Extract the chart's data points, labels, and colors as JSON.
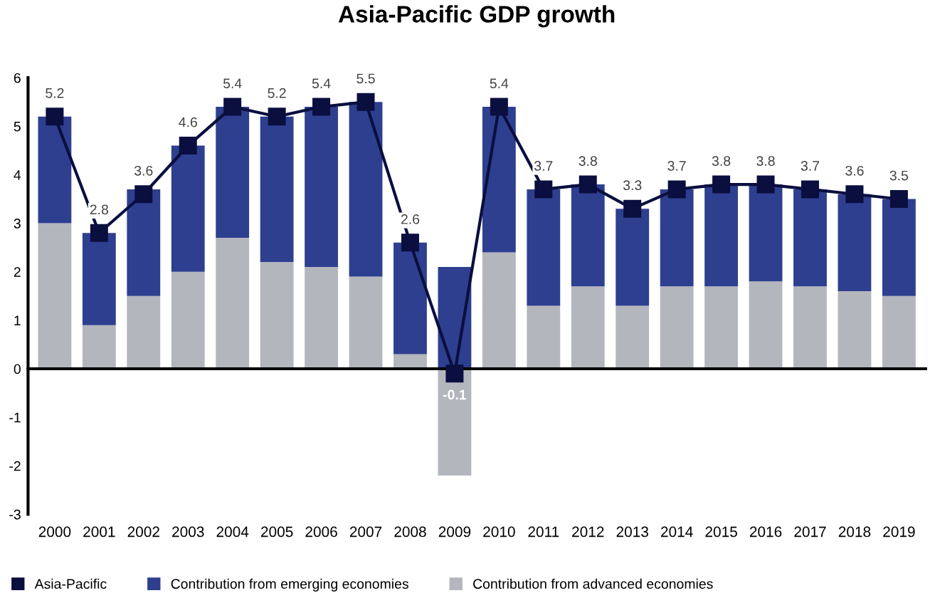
{
  "chart_data": {
    "type": "bar",
    "title": "Asia-Pacific GDP growth",
    "stacked": true,
    "categories": [
      "2000",
      "2001",
      "2002",
      "2003",
      "2004",
      "2005",
      "2006",
      "2007",
      "2008",
      "2009",
      "2010",
      "2011",
      "2012",
      "2013",
      "2014",
      "2015",
      "2016",
      "2017",
      "2018",
      "2019"
    ],
    "series": [
      {
        "name": "Contribution from advanced economies",
        "color": "#b4b6be",
        "values": [
          3.0,
          0.9,
          1.5,
          2.0,
          2.7,
          2.2,
          2.1,
          1.9,
          0.3,
          -2.2,
          2.4,
          1.3,
          1.7,
          1.3,
          1.7,
          1.7,
          1.8,
          1.7,
          1.6,
          1.5
        ]
      },
      {
        "name": "Contribution from emerging economies",
        "color": "#2e3f8f",
        "values": [
          2.2,
          1.9,
          2.2,
          2.6,
          2.7,
          3.0,
          3.3,
          3.6,
          2.3,
          2.1,
          3.0,
          2.4,
          2.1,
          2.0,
          2.0,
          2.1,
          2.0,
          2.0,
          2.0,
          2.0
        ]
      },
      {
        "name": "Asia-Pacific",
        "type": "line",
        "color": "#0a0f3f",
        "marker": "square",
        "values": [
          5.2,
          2.8,
          3.6,
          4.6,
          5.4,
          5.2,
          5.4,
          5.5,
          2.6,
          -0.1,
          5.4,
          3.7,
          3.8,
          3.3,
          3.7,
          3.8,
          3.8,
          3.7,
          3.6,
          3.5
        ],
        "value_labels": [
          "5.2",
          "2.8",
          "3.6",
          "4.6",
          "5.4",
          "5.2",
          "5.4",
          "5.5",
          "2.6",
          "-0.1",
          "5.4",
          "3.7",
          "3.8",
          "3.3",
          "3.7",
          "3.8",
          "3.8",
          "3.7",
          "3.6",
          "3.5"
        ]
      }
    ],
    "ylim": [
      -3,
      6
    ],
    "yticks": [
      -3,
      -2,
      -1,
      0,
      1,
      2,
      3,
      4,
      5,
      6
    ],
    "legend": "bottom left"
  }
}
